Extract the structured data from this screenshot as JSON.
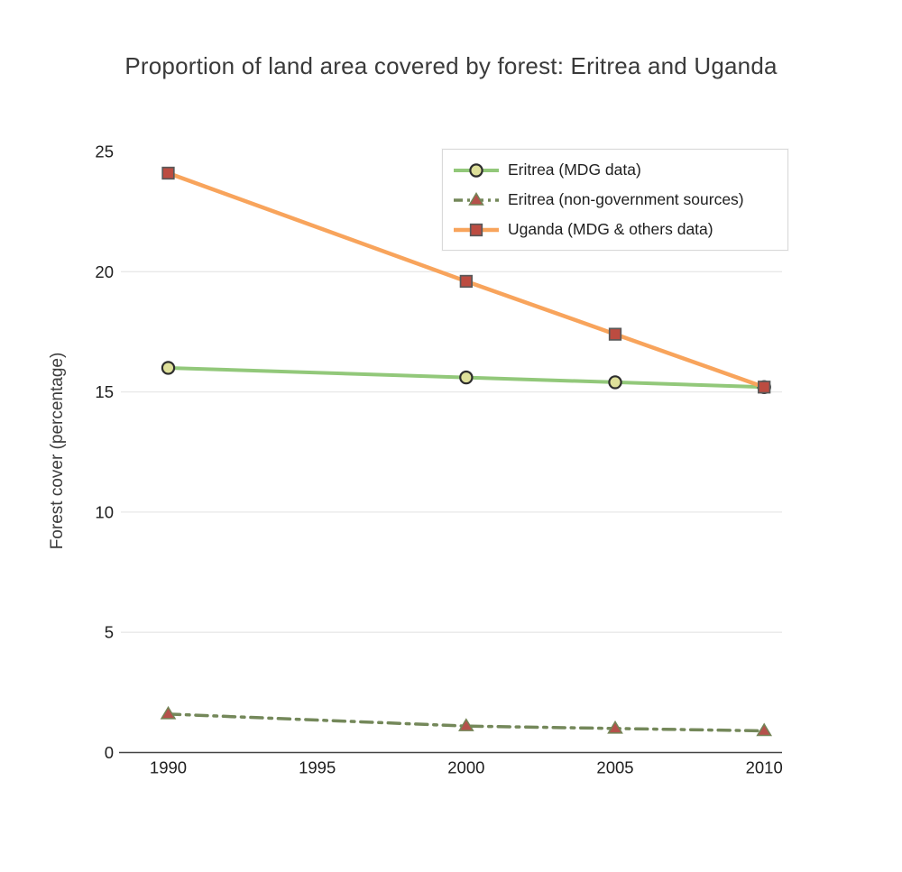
{
  "page": {
    "background": "#ffffff"
  },
  "chart_data": {
    "type": "line",
    "title": "Proportion of land area covered by forest: Eritrea and Uganda",
    "xlabel": "",
    "ylabel": "Forest cover (percentage)",
    "x": [
      1990,
      2000,
      2005,
      2010
    ],
    "x_ticks": [
      "1990",
      "1995",
      "2000",
      "2005",
      "2010"
    ],
    "y_ticks": [
      0,
      5,
      10,
      15,
      20,
      25
    ],
    "xlim": [
      1988.35,
      2010.6
    ],
    "ylim": [
      0,
      25
    ],
    "grid": "horizontal-gridlines-only, no gridline at 25, dark baseline at 0",
    "gridline_color": "#e8e8e8",
    "axis_color": "#444444",
    "tick_label_color": "#1e1e1e",
    "legend": {
      "position": "top-right-inside",
      "border_color": "#d9d9d9",
      "background": "#ffffff"
    },
    "series": [
      {
        "name": "Eritrea (MDG data)",
        "values": [
          16.0,
          15.6,
          15.4,
          15.2
        ],
        "line_color": "#92c87a",
        "line_style": "solid",
        "line_width": 4,
        "marker": "circle",
        "marker_fill": "#dee09a",
        "marker_stroke": "#2d2d2d"
      },
      {
        "name": "Eritrea (non-government sources)",
        "values": [
          1.6,
          1.1,
          1.0,
          0.9
        ],
        "line_color": "#74885a",
        "line_style": "dash-dot",
        "line_width": 3.5,
        "marker": "triangle",
        "marker_fill": "#b5514b",
        "marker_stroke": "#738456"
      },
      {
        "name": "Uganda (MDG & others data)",
        "values": [
          24.1,
          19.6,
          17.4,
          15.2
        ],
        "line_color": "#f8a45c",
        "line_style": "solid",
        "line_width": 4.5,
        "marker": "square",
        "marker_fill": "#bc4c41",
        "marker_stroke": "#595959"
      }
    ]
  }
}
